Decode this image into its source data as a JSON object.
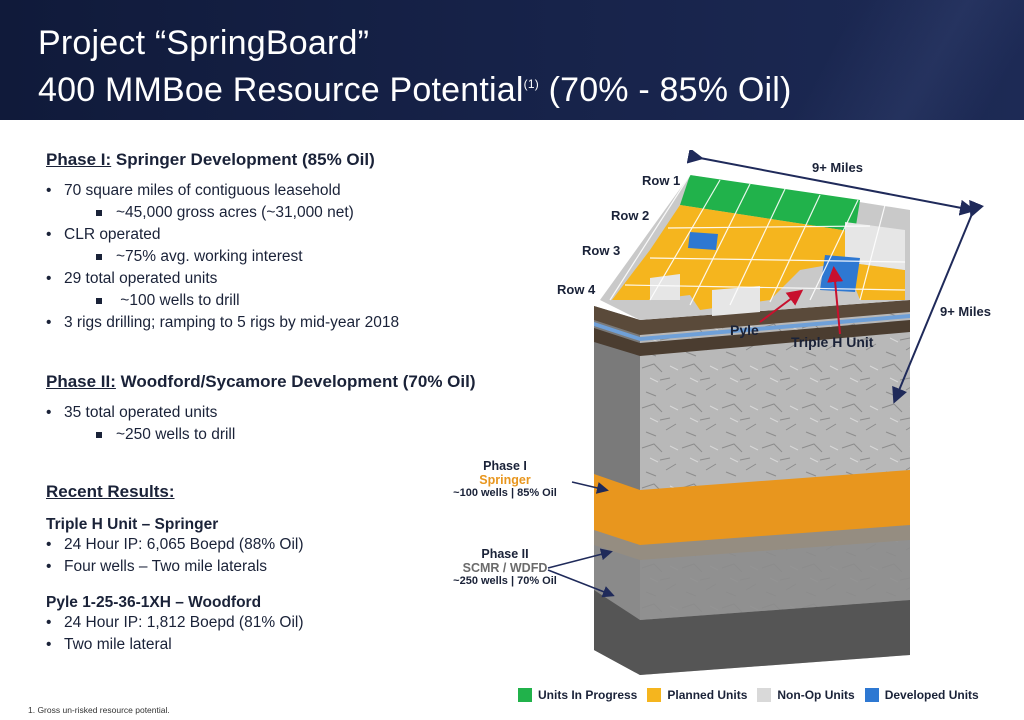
{
  "header": {
    "title_line1": "Project “SpringBoard”",
    "title_line2": "400 MMBoe Resource Potential",
    "title_footnote_mark": "(1)",
    "title_line2_suffix": " (70% - 85% Oil)"
  },
  "phase1": {
    "heading_label": "Phase I:",
    "heading_rest": " Springer Development (85% Oil)",
    "bullets": [
      {
        "text": "70 square miles of contiguous leasehold",
        "sub": "~45,000 gross acres (~31,000 net)"
      },
      {
        "text": "CLR operated",
        "sub": "~75% avg. working interest"
      },
      {
        "text": "29 total operated units",
        "sub": " ~100 wells to drill"
      },
      {
        "text": "3 rigs drilling; ramping to 5 rigs by mid-year 2018"
      }
    ]
  },
  "phase2": {
    "heading_label": "Phase II:",
    "heading_rest": " Woodford/Sycamore Development (70% Oil)",
    "bullets": [
      {
        "text": "35 total operated units",
        "sub": "~250 wells to drill"
      }
    ]
  },
  "recent": {
    "heading": "Recent Results:",
    "result1": {
      "title": "Triple H Unit – Springer",
      "items": [
        "24 Hour IP: 6,065 Boepd (88% Oil)",
        "Four wells – Two mile laterals"
      ]
    },
    "result2": {
      "title": "Pyle 1-25-36-1XH – Woodford",
      "items": [
        "24 Hour IP: 1,812 Boepd (81% Oil)",
        "Two mile lateral"
      ]
    }
  },
  "diagram": {
    "width_label": "9+ Miles",
    "depth_label": "9+ Miles",
    "rows": [
      "Row 1",
      "Row 2",
      "Row 3",
      "Row 4"
    ],
    "pyle_label": "Pyle",
    "tripleh_label": "Triple H Unit",
    "phase1_title": "Phase I",
    "phase1_zone": "Springer",
    "phase1_detail": "~100 wells | 85% Oil",
    "phase2_title": "Phase II",
    "phase2_zone": "SCMR / WDFD",
    "phase2_detail": "~250 wells | 70% Oil"
  },
  "legend": [
    {
      "label": "Units In Progress",
      "color": "#21b24b"
    },
    {
      "label": "Planned Units",
      "color": "#f5b51e"
    },
    {
      "label": "Non-Op Units",
      "color": "#d9d9d9"
    },
    {
      "label": "Developed Units",
      "color": "#2e78d2"
    }
  ],
  "footnote": "1.  Gross un-risked resource potential.",
  "colors": {
    "header_bg": "#17234a",
    "springer_band": "#e8961e",
    "arrow": "#1f2a5a",
    "pointer_red": "#c8102e"
  }
}
